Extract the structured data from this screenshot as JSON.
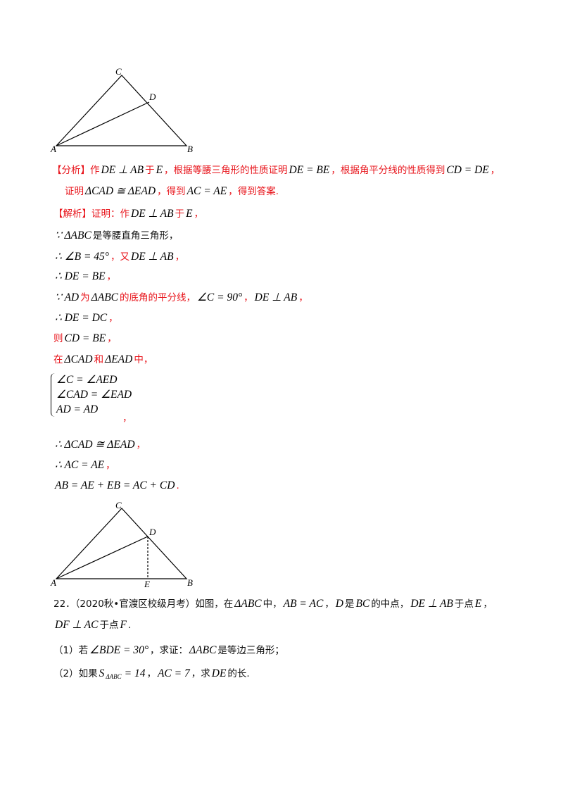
{
  "figure_1": {
    "points": [
      "C",
      "D",
      "A",
      "B"
    ]
  },
  "figure_2": {
    "points": [
      "C",
      "D",
      "A",
      "E",
      "B"
    ]
  },
  "analysis": {
    "line_1": [
      "【分析】作",
      "DE ⊥ AB",
      "于",
      "E",
      "，根据等腰三角形的性质证明",
      "DE = BE",
      "，根据角平分线的性质得到",
      "CD = DE",
      "，"
    ],
    "line_2": [
      "证明",
      "ΔCAD ≅ ΔEAD",
      "，得到",
      "AC = AE",
      "，得到答案."
    ]
  },
  "solution": {
    "lines": [
      [
        "【解析】证明：作",
        "DE ⊥ AB",
        "于",
        "E",
        "，"
      ],
      [
        "∵ ΔABC",
        "是等腰直角三角形，"
      ],
      [
        "∴ ∠B = 45°",
        "，又",
        "DE ⊥ AB",
        "，"
      ],
      [
        "∴ DE = BE",
        "，"
      ],
      [
        "∵ AD",
        "为",
        "ΔABC",
        "的底角的平分线，",
        "∠C = 90°",
        "，",
        "DE ⊥ AB",
        "，"
      ],
      [
        "∴ DE = DC",
        "，"
      ],
      [
        "则",
        "CD = BE",
        "，"
      ],
      [
        "在",
        "ΔCAD",
        "和",
        "ΔEAD",
        "中，"
      ]
    ],
    "system": [
      "∠C = ∠AED",
      "∠CAD = ∠EAD",
      "AD = AD"
    ],
    "system_end": "，",
    "conclusion": [
      [
        "∴ ΔCAD ≅ ΔEAD",
        "，"
      ],
      [
        "∴ AC = AE",
        "，"
      ],
      [
        "AB = AE + EB = AC + CD",
        "."
      ]
    ]
  },
  "problem": {
    "line_1": [
      "22．（2020秋•官渡区校级月考）如图，在",
      "ΔABC",
      "中，",
      "AB = AC",
      "，",
      "D",
      "是",
      "BC",
      "的中点，",
      "DE ⊥ AB",
      "于点",
      "E",
      "，"
    ],
    "line_2": [
      "DF ⊥ AC",
      "于点",
      "F",
      "."
    ],
    "question_1": [
      "（1）若",
      "∠BDE = 30°",
      "，求证：",
      "ΔABC",
      "是等边三角形；"
    ],
    "question_2": [
      "（2）如果",
      "S",
      "ΔABC",
      "= 14",
      "，",
      "AC = 7",
      "，求",
      "DE",
      "的长."
    ]
  }
}
